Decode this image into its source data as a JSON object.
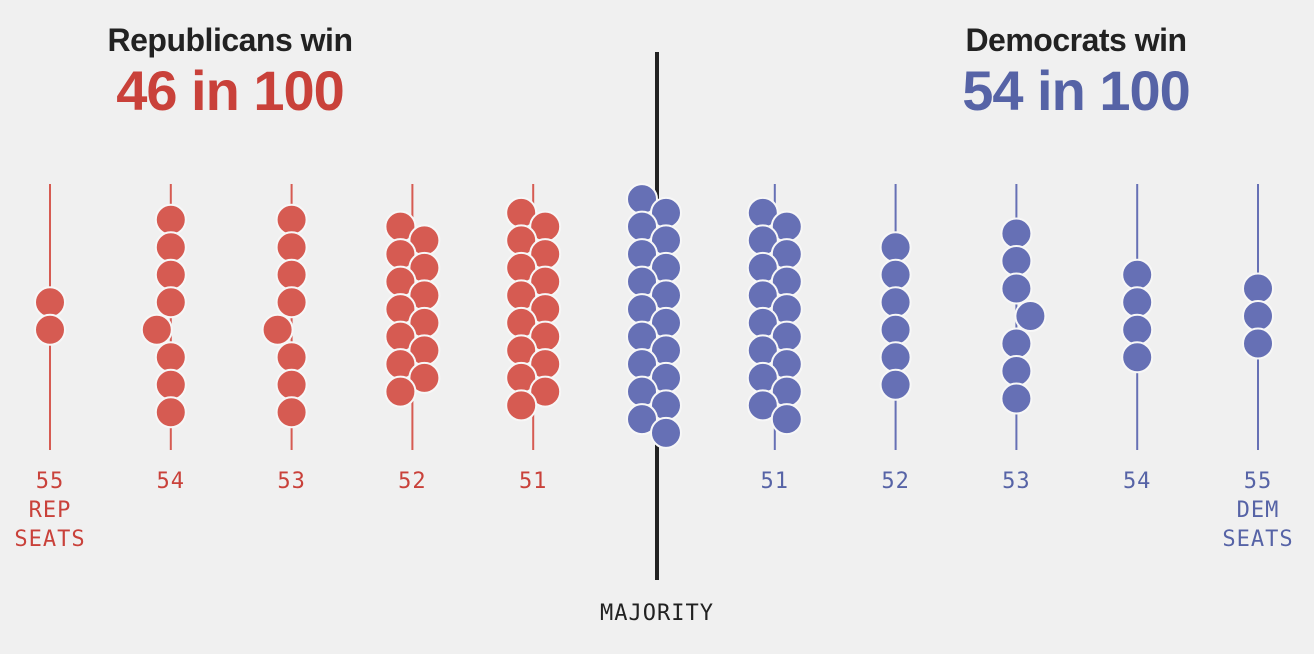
{
  "header": {
    "rep_title": "Republicans win",
    "rep_odds": "46 in 100",
    "dem_title": "Democrats win",
    "dem_odds": "54 in 100"
  },
  "colors": {
    "republican": "#d65b52",
    "republican_text": "#c9413a",
    "democrat": "#6670b5",
    "democrat_text": "#5663a6",
    "majority_line": "#222222"
  },
  "chart_data": {
    "type": "scatter",
    "title": "",
    "majority_label": "MAJORITY",
    "columns": [
      {
        "party": "rep",
        "seats": 55,
        "label": [
          "55",
          "REP",
          "SEATS"
        ],
        "count": 2
      },
      {
        "party": "rep",
        "seats": 54,
        "label": [
          "54"
        ],
        "count": 8
      },
      {
        "party": "rep",
        "seats": 53,
        "label": [
          "53"
        ],
        "count": 8
      },
      {
        "party": "rep",
        "seats": 52,
        "label": [
          "52"
        ],
        "count": 13
      },
      {
        "party": "rep",
        "seats": 51,
        "label": [
          "51"
        ],
        "count": 15
      },
      {
        "party": "dem",
        "seats": 50,
        "label": [],
        "count": 18
      },
      {
        "party": "dem",
        "seats": 51,
        "label": [
          "51"
        ],
        "count": 16
      },
      {
        "party": "dem",
        "seats": 52,
        "label": [
          "52"
        ],
        "count": 6
      },
      {
        "party": "dem",
        "seats": 53,
        "label": [
          "53"
        ],
        "count": 7
      },
      {
        "party": "dem",
        "seats": 54,
        "label": [
          "54"
        ],
        "count": 4
      },
      {
        "party": "dem",
        "seats": 55,
        "label": [
          "55",
          "DEM",
          "SEATS"
        ],
        "count": 3
      }
    ]
  }
}
